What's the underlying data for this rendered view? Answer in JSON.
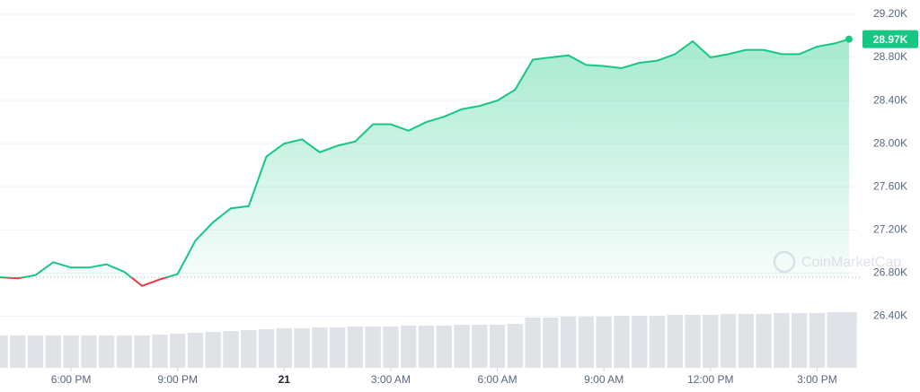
{
  "chart_data": {
    "type": "line",
    "x": [
      16,
      16.5,
      17,
      17.5,
      18,
      18.5,
      19,
      19.5,
      20,
      20.5,
      21,
      21.5,
      22,
      22.5,
      23,
      23.5,
      24,
      24.5,
      25,
      25.5,
      26,
      26.5,
      27,
      27.5,
      28,
      28.5,
      29,
      29.5,
      30,
      30.5,
      31,
      31.5,
      32,
      32.5,
      33,
      33.5,
      34,
      34.5,
      35,
      35.5,
      36,
      36.5,
      37,
      37.5,
      38,
      38.5,
      39,
      39.5,
      39.9
    ],
    "series": [
      {
        "name": "Price",
        "color": "#16c784",
        "down_color": "#ea3943",
        "values": [
          26760,
          26750,
          26780,
          26900,
          26850,
          26850,
          26880,
          26810,
          26680,
          26740,
          26790,
          27100,
          27270,
          27400,
          27420,
          27880,
          28000,
          28040,
          27920,
          27980,
          28020,
          28180,
          28180,
          28120,
          28200,
          28250,
          28320,
          28350,
          28400,
          28500,
          28780,
          28800,
          28820,
          28730,
          28720,
          28700,
          28750,
          28770,
          28830,
          28950,
          28800,
          28830,
          28870,
          28870,
          28830,
          28830,
          28900,
          28930,
          28970
        ]
      }
    ],
    "volume": {
      "color": "#dfe2e7",
      "values": [
        36,
        36,
        36,
        36,
        36,
        36,
        36,
        36,
        36,
        37,
        38,
        39,
        40,
        41,
        42,
        43,
        44,
        44,
        45,
        45,
        46,
        46,
        46,
        47,
        47,
        47,
        48,
        48,
        48,
        49,
        56,
        56,
        57,
        57,
        57,
        58,
        58,
        58,
        59,
        59,
        59,
        60,
        60,
        60,
        61,
        61,
        61,
        62,
        62
      ]
    },
    "baseline": 26760,
    "last_price_label": "28.97K",
    "watermark": "CoinMarketCap",
    "xlim": [
      16,
      39.9
    ],
    "xticks": [
      {
        "value": 18,
        "label": "6:00 PM"
      },
      {
        "value": 21,
        "label": "9:00 PM"
      },
      {
        "value": 24,
        "label": "21"
      },
      {
        "value": 27,
        "label": "3:00 AM"
      },
      {
        "value": 30,
        "label": "6:00 AM"
      },
      {
        "value": 33,
        "label": "9:00 AM"
      },
      {
        "value": 36,
        "label": "12:00 PM"
      },
      {
        "value": 39,
        "label": "3:00 PM"
      }
    ],
    "ylim": [
      25920,
      29333
    ],
    "yticks": [
      {
        "value": 26400,
        "label": "26.40K"
      },
      {
        "value": 26800,
        "label": "26.80K"
      },
      {
        "value": 27200,
        "label": "27.20K"
      },
      {
        "value": 27600,
        "label": "27.60K"
      },
      {
        "value": 28000,
        "label": "28.00K"
      },
      {
        "value": 28400,
        "label": "28.40K"
      },
      {
        "value": 28800,
        "label": "28.80K"
      },
      {
        "value": 29200,
        "label": "29.20K"
      }
    ],
    "grid": true
  }
}
